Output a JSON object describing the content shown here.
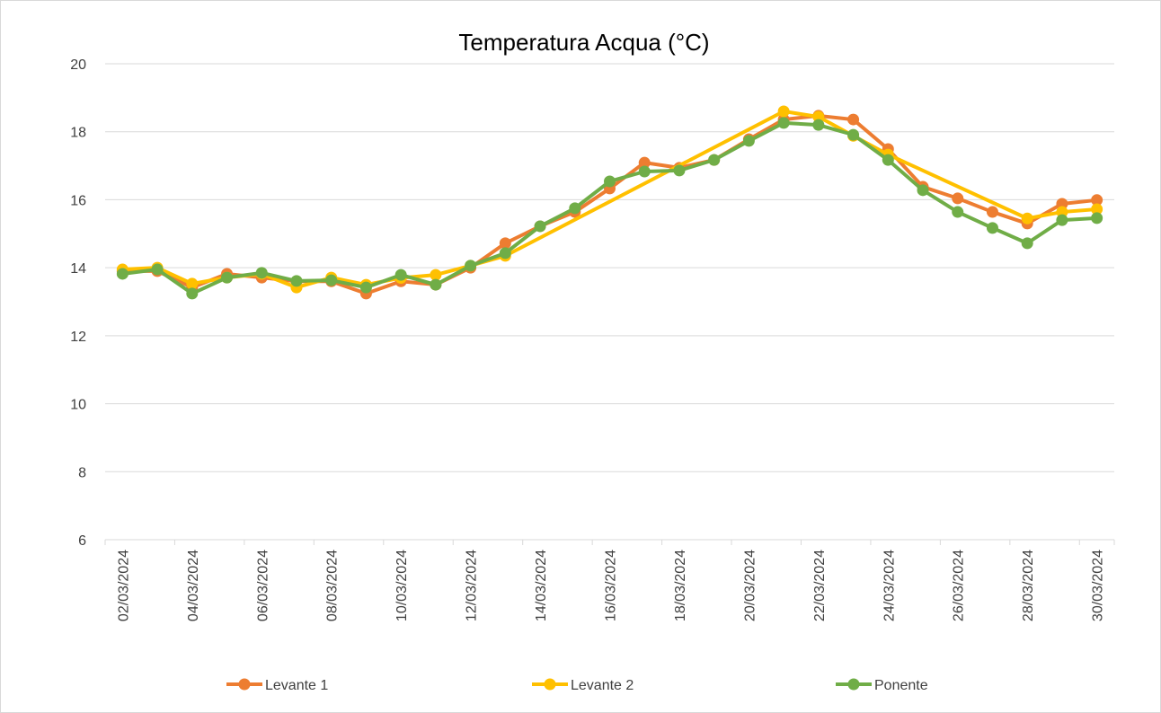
{
  "chart_data": {
    "type": "line",
    "title": "Temperatura Acqua (°C)",
    "xticks": [
      "02/03/2024",
      "04/03/2024",
      "06/03/2024",
      "08/03/2024",
      "10/03/2024",
      "12/03/2024",
      "14/03/2024",
      "16/03/2024",
      "18/03/2024",
      "20/03/2024",
      "22/03/2024",
      "24/03/2024",
      "26/03/2024",
      "28/03/2024",
      "30/03/2024"
    ],
    "ylim": [
      6,
      20
    ],
    "yticks": [
      6,
      8,
      10,
      12,
      14,
      16,
      18,
      20
    ],
    "grid": true,
    "legend": "bottom",
    "series": [
      {
        "name": "Levante 1",
        "color": "#ED7D31",
        "x": [
          "02/03/2024",
          "03/03/2024",
          "04/03/2024",
          "05/03/2024",
          "06/03/2024",
          "07/03/2024",
          "08/03/2024",
          "09/03/2024",
          "10/03/2024",
          "11/03/2024",
          "12/03/2024",
          "13/03/2024",
          "14/03/2024",
          "15/03/2024",
          "16/03/2024",
          "17/03/2024",
          "18/03/2024",
          "19/03/2024",
          "20/03/2024",
          "21/03/2024",
          "22/03/2024",
          "23/03/2024",
          "24/03/2024",
          "25/03/2024",
          "26/03/2024",
          "27/03/2024",
          "28/03/2024",
          "29/03/2024",
          "30/03/2024"
        ],
        "values": [
          13.9,
          13.9,
          13.42,
          13.82,
          13.71,
          13.6,
          13.6,
          13.24,
          13.6,
          13.5,
          14.0,
          14.72,
          15.22,
          15.64,
          16.33,
          17.09,
          16.94,
          17.17,
          17.78,
          18.36,
          18.47,
          18.36,
          17.49,
          16.38,
          16.04,
          15.64,
          15.3,
          15.88,
          15.99
        ]
      },
      {
        "name": "Levante 2",
        "color": "#FFC000",
        "x": [
          "02/03/2024",
          "03/03/2024",
          "04/03/2024",
          "05/03/2024",
          "06/03/2024",
          "07/03/2024",
          "08/03/2024",
          "09/03/2024",
          "10/03/2024",
          "11/03/2024",
          "12/03/2024",
          "13/03/2024",
          "21/03/2024",
          "22/03/2024",
          "23/03/2024",
          "24/03/2024",
          "28/03/2024",
          "29/03/2024",
          "30/03/2024"
        ],
        "values": [
          13.95,
          14.0,
          13.53,
          13.71,
          13.82,
          13.42,
          13.71,
          13.5,
          13.7,
          13.79,
          14.06,
          14.35,
          18.6,
          18.44,
          17.88,
          17.33,
          15.45,
          15.64,
          15.72
        ]
      },
      {
        "name": "Ponente",
        "color": "#70AD47",
        "x": [
          "02/03/2024",
          "03/03/2024",
          "04/03/2024",
          "05/03/2024",
          "06/03/2024",
          "07/03/2024",
          "08/03/2024",
          "09/03/2024",
          "10/03/2024",
          "11/03/2024",
          "12/03/2024",
          "13/03/2024",
          "14/03/2024",
          "15/03/2024",
          "16/03/2024",
          "17/03/2024",
          "18/03/2024",
          "19/03/2024",
          "20/03/2024",
          "21/03/2024",
          "22/03/2024",
          "23/03/2024",
          "24/03/2024",
          "25/03/2024",
          "26/03/2024",
          "27/03/2024",
          "28/03/2024",
          "29/03/2024",
          "30/03/2024"
        ],
        "values": [
          13.82,
          13.95,
          13.24,
          13.71,
          13.85,
          13.61,
          13.63,
          13.42,
          13.79,
          13.5,
          14.06,
          14.43,
          15.22,
          15.75,
          16.54,
          16.83,
          16.86,
          17.17,
          17.73,
          18.26,
          18.2,
          17.91,
          17.17,
          16.28,
          15.64,
          15.17,
          14.72,
          15.4,
          15.46
        ]
      }
    ]
  }
}
